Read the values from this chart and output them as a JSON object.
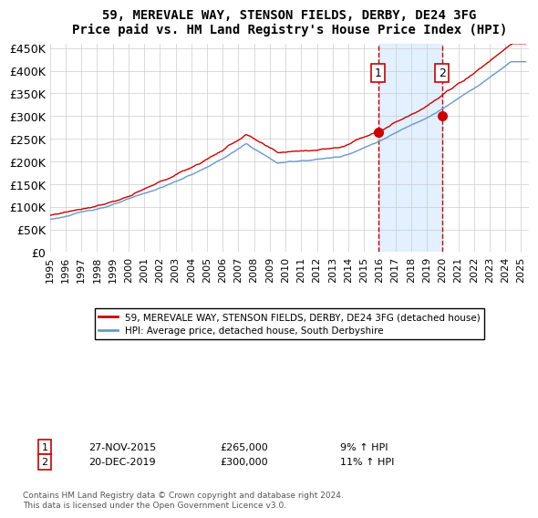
{
  "title": "59, MEREVALE WAY, STENSON FIELDS, DERBY, DE24 3FG",
  "subtitle": "Price paid vs. HM Land Registry's House Price Index (HPI)",
  "ylim": [
    0,
    460000
  ],
  "xlim_start": 1995.0,
  "xlim_end": 2025.5,
  "yticks": [
    0,
    50000,
    100000,
    150000,
    200000,
    250000,
    300000,
    350000,
    400000,
    450000
  ],
  "ytick_labels": [
    "£0",
    "£50K",
    "£100K",
    "£150K",
    "£200K",
    "£250K",
    "£300K",
    "£350K",
    "£400K",
    "£450K"
  ],
  "xtick_years": [
    1995,
    1996,
    1997,
    1998,
    1999,
    2000,
    2001,
    2002,
    2003,
    2004,
    2005,
    2006,
    2007,
    2008,
    2009,
    2010,
    2011,
    2012,
    2013,
    2014,
    2015,
    2016,
    2017,
    2018,
    2019,
    2020,
    2021,
    2022,
    2023,
    2024,
    2025
  ],
  "transaction1_x": 2015.9,
  "transaction1_y": 265000,
  "transaction1_label": "1",
  "transaction1_date": "27-NOV-2015",
  "transaction1_price": "£265,000",
  "transaction1_hpi": "9% ↑ HPI",
  "transaction2_x": 2019.96,
  "transaction2_y": 300000,
  "transaction2_label": "2",
  "transaction2_date": "20-DEC-2019",
  "transaction2_price": "£300,000",
  "transaction2_hpi": "11% ↑ HPI",
  "red_line_color": "#cc0000",
  "blue_line_color": "#6699cc",
  "blue_fill_color": "#ddeeff",
  "grid_color": "#cccccc",
  "background_color": "#ffffff",
  "legend_label_red": "59, MEREVALE WAY, STENSON FIELDS, DERBY, DE24 3FG (detached house)",
  "legend_label_blue": "HPI: Average price, detached house, South Derbyshire",
  "footer": "Contains HM Land Registry data © Crown copyright and database right 2024.\nThis data is licensed under the Open Government Licence v3.0."
}
